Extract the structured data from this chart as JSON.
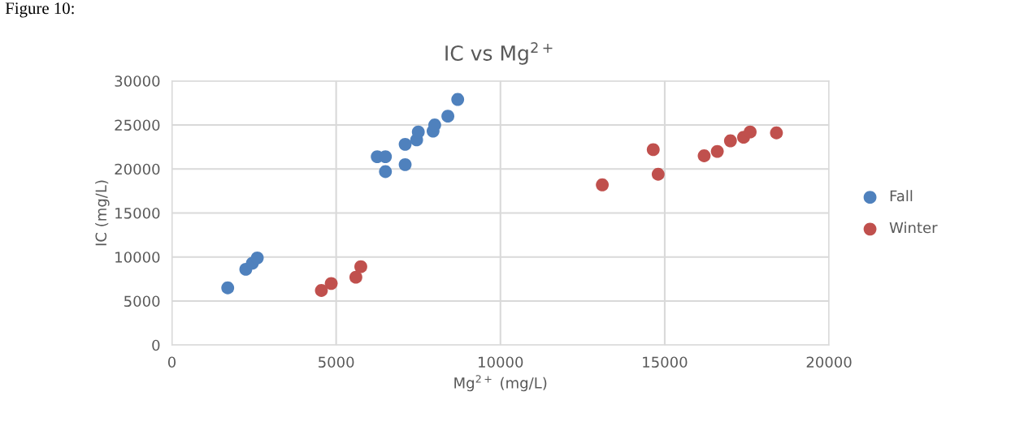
{
  "chart_data": {
    "type": "scatter",
    "title": "IC vs Mg$^{2+}$",
    "xlabel": "Mg$^{2+}$ (mg/L)",
    "ylabel": "IC (mg/L)",
    "annotations": [
      "Figure 10:"
    ],
    "xlim": [
      0,
      20000
    ],
    "xticks": [
      0,
      5000,
      10000,
      15000,
      20000
    ],
    "ylim": [
      0,
      30000
    ],
    "yticks": [
      0,
      5000,
      10000,
      15000,
      20000,
      25000,
      30000
    ],
    "grid": true,
    "legend": "right",
    "marker": "circle",
    "series": [
      {
        "name": "Fall",
        "color": "#4f81bd",
        "x": [
          1700,
          2250,
          2450,
          2600,
          6250,
          6500,
          6500,
          7100,
          7100,
          7450,
          7500,
          7950,
          8000,
          8400,
          8700
        ],
        "values": [
          6500,
          8600,
          9300,
          9900,
          21400,
          21400,
          19700,
          20500,
          22800,
          23300,
          24200,
          24300,
          25000,
          26000,
          27900
        ]
      },
      {
        "name": "Winter",
        "color": "#c0504d",
        "x": [
          4550,
          4850,
          5600,
          5750,
          13100,
          14650,
          14800,
          16200,
          16600,
          17000,
          17400,
          17600,
          18400
        ],
        "values": [
          6200,
          7000,
          7700,
          8900,
          18200,
          22200,
          19400,
          21500,
          22000,
          23200,
          23600,
          24200,
          24100
        ]
      }
    ]
  }
}
